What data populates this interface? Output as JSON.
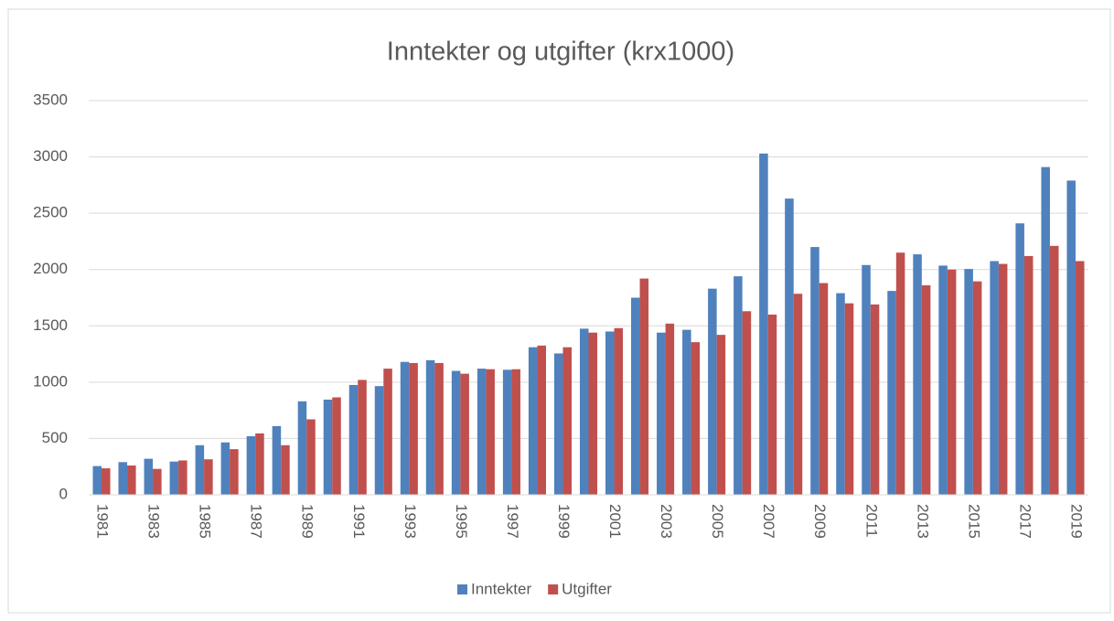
{
  "chart_data": {
    "type": "bar",
    "title": "Inntekter og utgifter (krx1000)",
    "categories": [
      "1981",
      null,
      "1983",
      null,
      "1985",
      null,
      "1987",
      null,
      "1989",
      null,
      "1991",
      null,
      "1993",
      null,
      "1995",
      null,
      "1997",
      null,
      "1999",
      null,
      "2001",
      null,
      "2003",
      null,
      "2005",
      null,
      "2007",
      null,
      "2009",
      null,
      "2011",
      null,
      "2013",
      null,
      "2015",
      null,
      "2017",
      null,
      "2019"
    ],
    "series": [
      {
        "name": "Inntekter",
        "color": "#4f81bd",
        "values": [
          255,
          290,
          320,
          295,
          440,
          465,
          520,
          610,
          830,
          845,
          975,
          965,
          1180,
          1195,
          1100,
          1120,
          1110,
          1310,
          1255,
          1475,
          1450,
          1750,
          1440,
          1465,
          1830,
          1940,
          3030,
          2630,
          2200,
          1790,
          2040,
          1810,
          2135,
          2035,
          2005,
          2075,
          2410,
          2910,
          2790
        ]
      },
      {
        "name": "Utgifter",
        "color": "#c0504d",
        "values": [
          235,
          260,
          230,
          305,
          315,
          405,
          545,
          440,
          670,
          865,
          1020,
          1120,
          1170,
          1170,
          1075,
          1115,
          1115,
          1325,
          1310,
          1440,
          1480,
          1920,
          1520,
          1355,
          1420,
          1630,
          1600,
          1785,
          1880,
          1700,
          1690,
          2150,
          1860,
          2000,
          1895,
          2050,
          2120,
          2210,
          2075
        ]
      }
    ],
    "ylim": [
      0,
      3500
    ],
    "yticks": [
      0,
      500,
      1000,
      1500,
      2000,
      2500,
      3000,
      3500
    ],
    "grid": true,
    "legend": "bottom"
  }
}
